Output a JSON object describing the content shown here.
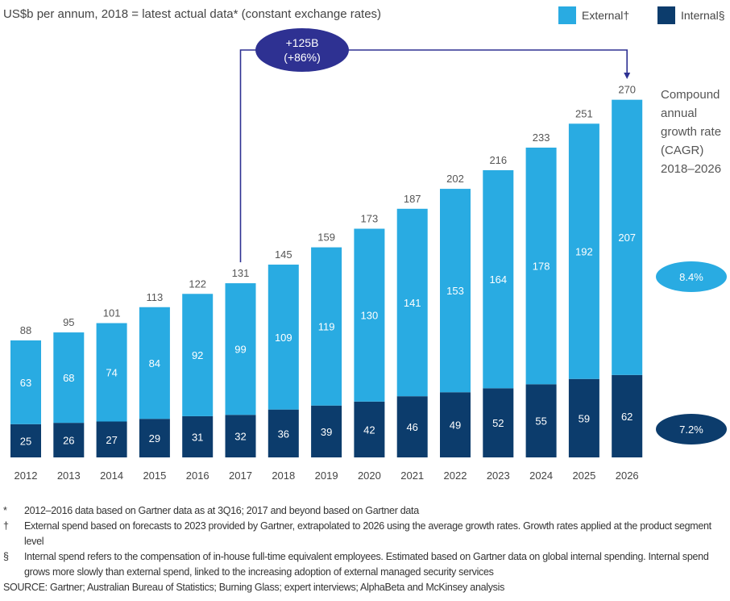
{
  "chart_data": {
    "type": "bar",
    "stacked": true,
    "subtitle": "US$b per annum, 2018 = latest actual data* (constant exchange rates)",
    "categories": [
      "2012",
      "2013",
      "2014",
      "2015",
      "2016",
      "2017",
      "2018",
      "2019",
      "2020",
      "2021",
      "2022",
      "2023",
      "2024",
      "2025",
      "2026"
    ],
    "series": [
      {
        "name": "Internal§",
        "color": "#0c3c6c",
        "values": [
          25,
          26,
          27,
          29,
          31,
          32,
          36,
          39,
          42,
          46,
          49,
          52,
          55,
          59,
          62
        ]
      },
      {
        "name": "External†",
        "color": "#29abe2",
        "values": [
          63,
          68,
          74,
          84,
          92,
          99,
          109,
          119,
          130,
          141,
          153,
          164,
          178,
          192,
          207
        ]
      }
    ],
    "totals": [
      88,
      95,
      101,
      113,
      122,
      131,
      145,
      159,
      173,
      187,
      202,
      216,
      233,
      251,
      270
    ],
    "legend_position": "top-right",
    "grid": false,
    "ylim": [
      0,
      270
    ],
    "annotation": {
      "line1": "+125B",
      "line2": "(+86%)",
      "from": "2017",
      "to": "2026",
      "color": "#2e3192"
    },
    "cagr": {
      "label_lines": [
        "Compound",
        "annual",
        "growth rate",
        "(CAGR)",
        "2018–2026"
      ],
      "external": "8.4%",
      "internal": "7.2%"
    }
  },
  "footnotes": [
    {
      "symbol": "*",
      "text": "2012–2016 data based on Gartner data as at 3Q16; 2017 and beyond based on Gartner data"
    },
    {
      "symbol": "†",
      "text": "External spend based on forecasts to 2023 provided by Gartner, extrapolated to 2026 using the average growth rates. Growth rates applied at the product segment level"
    },
    {
      "symbol": "§",
      "text": "Internal spend refers to the compensation of in-house full-time equivalent employees. Estimated based on Gartner data on global internal spending. Internal spend grows more slowly than external spend, linked to the increasing adoption of external managed security services"
    }
  ],
  "source": "SOURCE: Gartner; Australian Bureau of Statistics; Burning Glass; expert interviews; AlphaBeta and McKinsey analysis"
}
